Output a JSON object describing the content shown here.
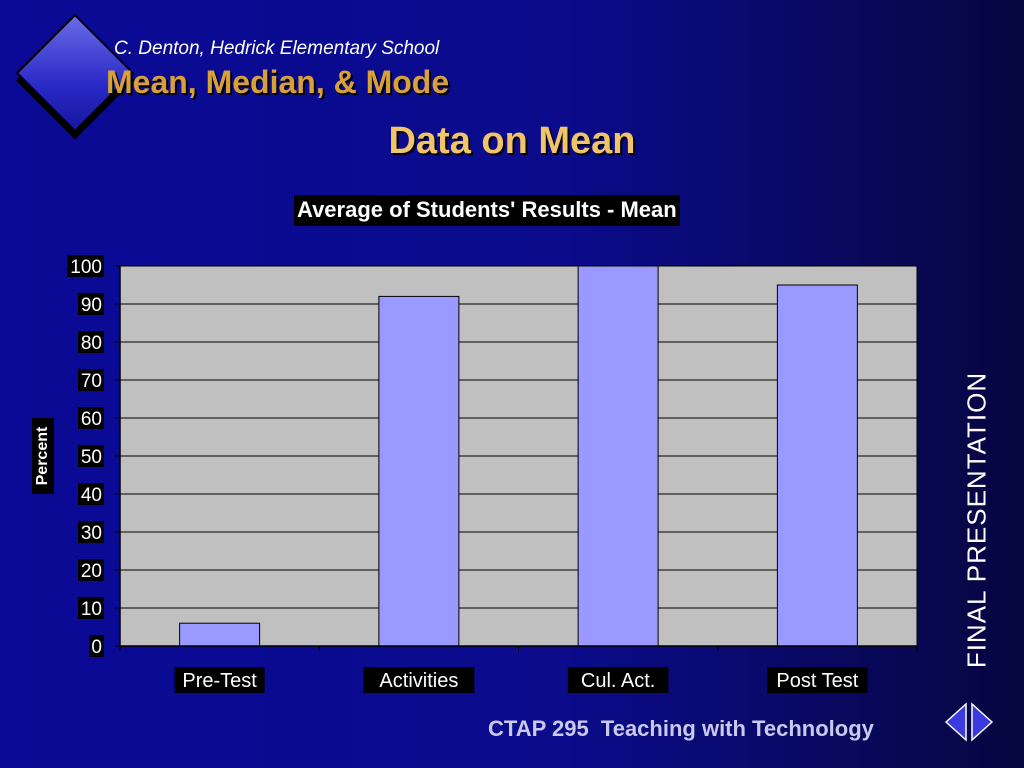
{
  "header": {
    "author": "C. Denton, Hedrick Elementary School",
    "subject": "Mean, Median, & Mode"
  },
  "slide": {
    "title": "Data on Mean",
    "side_text": "FINAL PRESENTATION",
    "footer": "CTAP 295  Teaching with Technology"
  },
  "icons": {
    "logo": "diamond-icon",
    "nav_prev": "arrow-left-icon",
    "nav_next": "arrow-right-icon"
  },
  "colors": {
    "bar": "#9999ff",
    "plot_bg": "#c0c0c0",
    "accent_title": "#f2c46a",
    "accent_subject": "#d8a03a"
  },
  "chart_data": {
    "type": "bar",
    "title": "Average of Students' Results - Mean",
    "ylabel": "Percent",
    "xlabel": "",
    "categories": [
      "Pre-Test",
      "Activities",
      "Cul. Act.",
      "Post Test"
    ],
    "values": [
      6,
      92,
      100,
      95
    ],
    "ylim": [
      0,
      100
    ],
    "yticks": [
      0,
      10,
      20,
      30,
      40,
      50,
      60,
      70,
      80,
      90,
      100
    ],
    "grid": true,
    "legend": "none"
  }
}
